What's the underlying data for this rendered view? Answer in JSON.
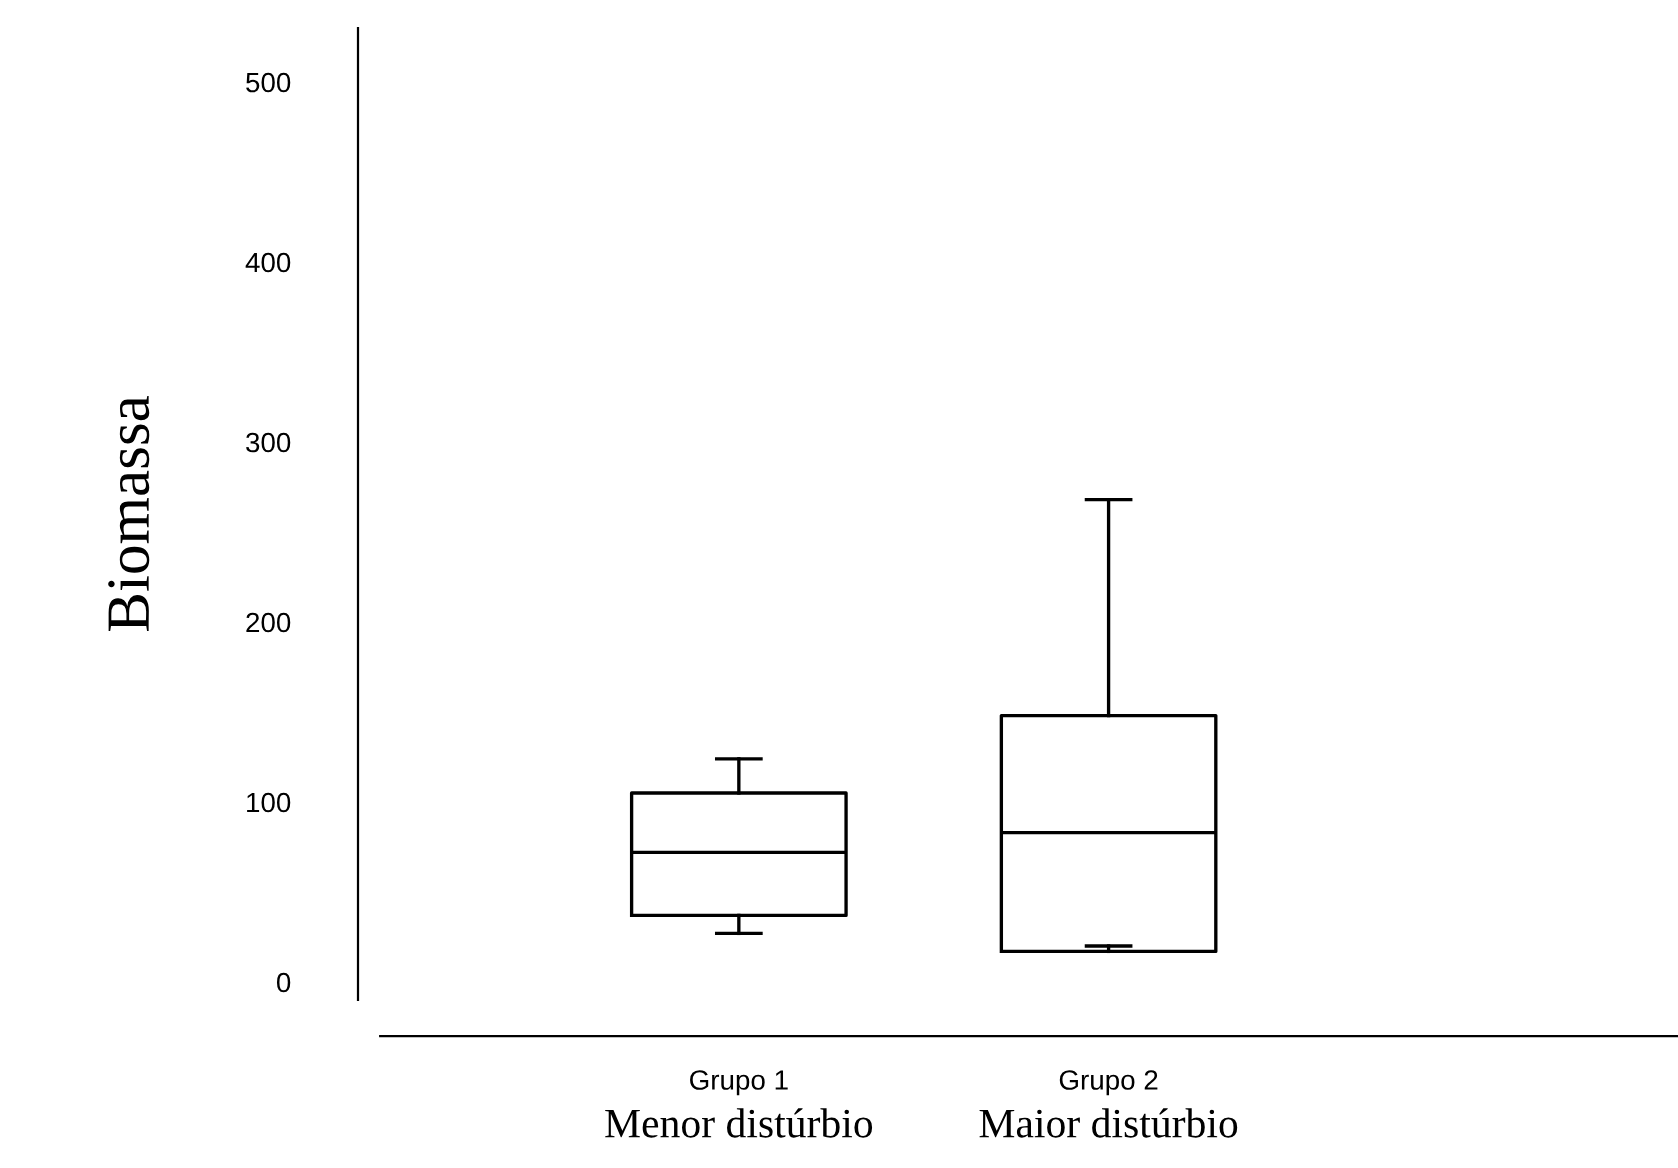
{
  "chart_data": {
    "type": "box",
    "ylabel": "Biomassa",
    "categories": [
      "Grupo 1",
      "Grupo 2"
    ],
    "boxes": [
      {
        "low": 27,
        "q1": 37,
        "median": 72,
        "q3": 105,
        "high": 124
      },
      {
        "low": 20,
        "q1": 17,
        "median": 83,
        "q3": 148,
        "high": 268
      }
    ],
    "ylim": [
      -10,
      530
    ],
    "yticks": [
      0,
      100,
      200,
      300,
      400,
      500
    ],
    "grid": false,
    "legend": false,
    "annotations": [
      "Menor distúrbio",
      "Maior distúrbio"
    ]
  }
}
